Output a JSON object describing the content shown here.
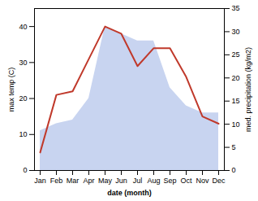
{
  "chart_data": {
    "type": "line",
    "categories": [
      "Jan",
      "Feb",
      "Mar",
      "Apr",
      "May",
      "Jun",
      "Jul",
      "Aug",
      "Sep",
      "Oct",
      "Nov",
      "Dec"
    ],
    "series": [
      {
        "type": "area",
        "color": "#c8d4f0",
        "values": [
          11,
          13,
          14,
          20,
          40,
          38,
          36,
          36,
          23,
          18,
          16,
          16
        ]
      },
      {
        "type": "line",
        "color": "#c0392b",
        "values": [
          5,
          21,
          22,
          31,
          40,
          38,
          29,
          34,
          34,
          26,
          15,
          13
        ]
      }
    ],
    "xlabel": "date (month)",
    "ylabel": "max temp (C)",
    "y2label": "med. precipitation (kg/m2)",
    "ylim": [
      0,
      45
    ],
    "yticks": [
      0,
      10,
      20,
      30,
      40
    ],
    "y2lim": [
      0,
      35
    ],
    "y2ticks": [
      0,
      5,
      10,
      15,
      20,
      25,
      30,
      35
    ],
    "grid": false
  }
}
